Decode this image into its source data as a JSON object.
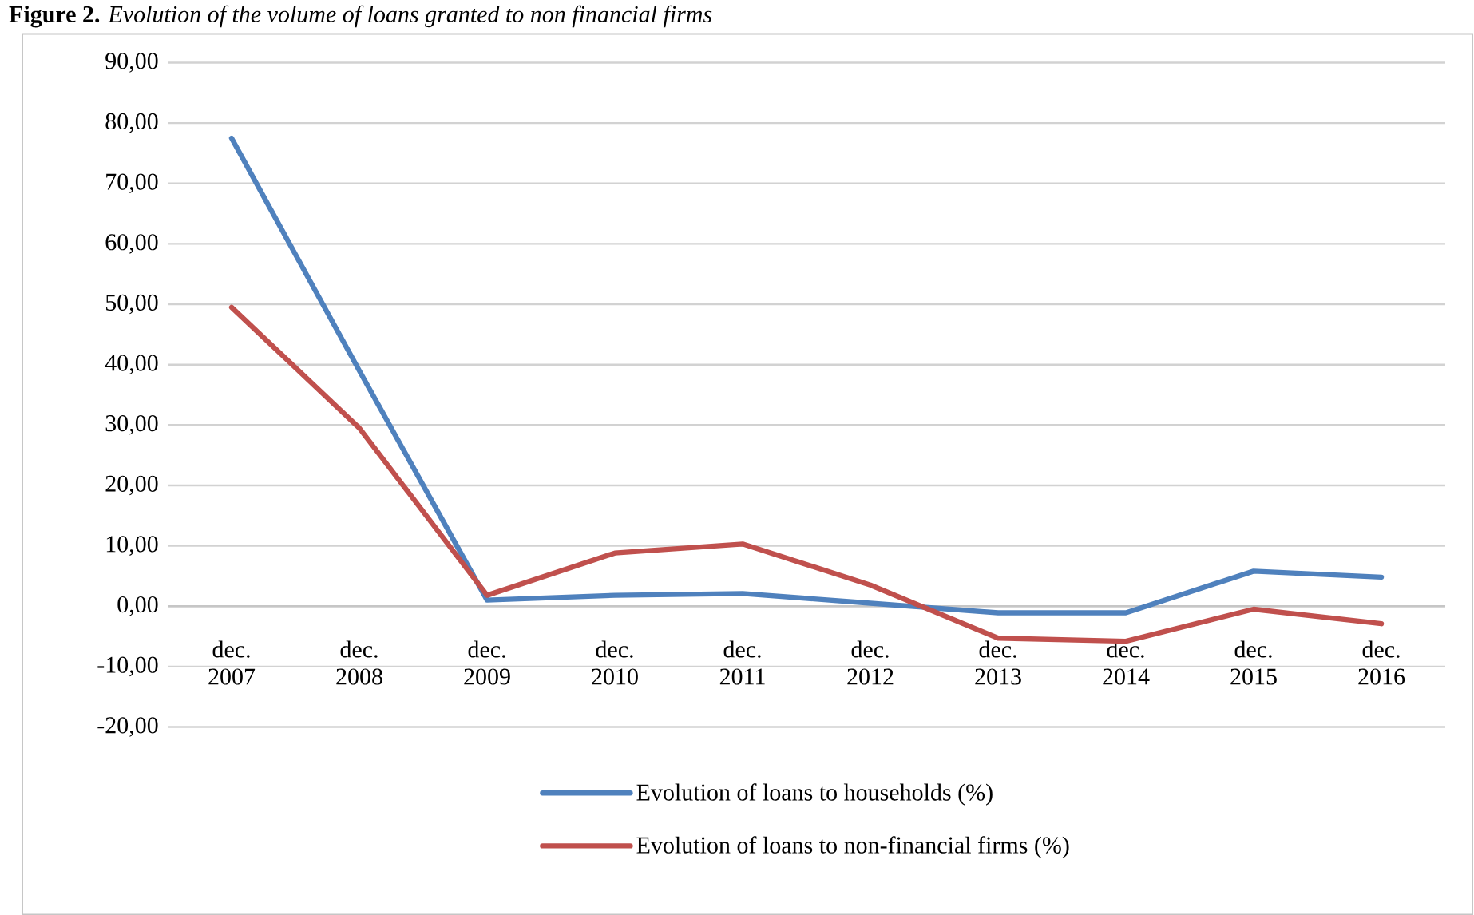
{
  "chart_data": {
    "type": "line",
    "title": "**Figure 2.** *Evolution of the volume of loans granted to non financial firms*",
    "categories": [
      "dec. 2007",
      "dec. 2008",
      "dec. 2009",
      "dec. 2010",
      "dec. 2011",
      "dec. 2012",
      "dec. 2013",
      "dec. 2014",
      "dec. 2015",
      "dec. 2016"
    ],
    "series": [
      {
        "name": "Evolution of loans to households (%)",
        "color": "#4f81bd",
        "values": [
          77.5,
          39,
          1,
          1.8,
          2.1,
          0.5,
          -1.1,
          -1.1,
          5.8,
          4.8
        ]
      },
      {
        "name": "Evolution of loans to non-financial firms (%)",
        "color": "#c0504d",
        "values": [
          49.5,
          29.5,
          1.8,
          8.8,
          10.3,
          3.5,
          -5.3,
          -5.8,
          -0.5,
          -2.9
        ]
      }
    ],
    "ylim": [
      -20,
      90
    ],
    "yticks": [
      {
        "value": -20,
        "label": "-20,00"
      },
      {
        "value": -10,
        "label": "-10,00"
      },
      {
        "value": 0,
        "label": "0,00"
      },
      {
        "value": 10,
        "label": "10,00"
      },
      {
        "value": 20,
        "label": "20,00"
      },
      {
        "value": 30,
        "label": "30,00"
      },
      {
        "value": 40,
        "label": "40,00"
      },
      {
        "value": 50,
        "label": "50,00"
      },
      {
        "value": 60,
        "label": "60,00"
      },
      {
        "value": 70,
        "label": "70,00"
      },
      {
        "value": 80,
        "label": "80,00"
      },
      {
        "value": 90,
        "label": "90,00"
      }
    ],
    "grid": "y",
    "legend": "bottom",
    "marker": "none",
    "line_style": "solid"
  }
}
